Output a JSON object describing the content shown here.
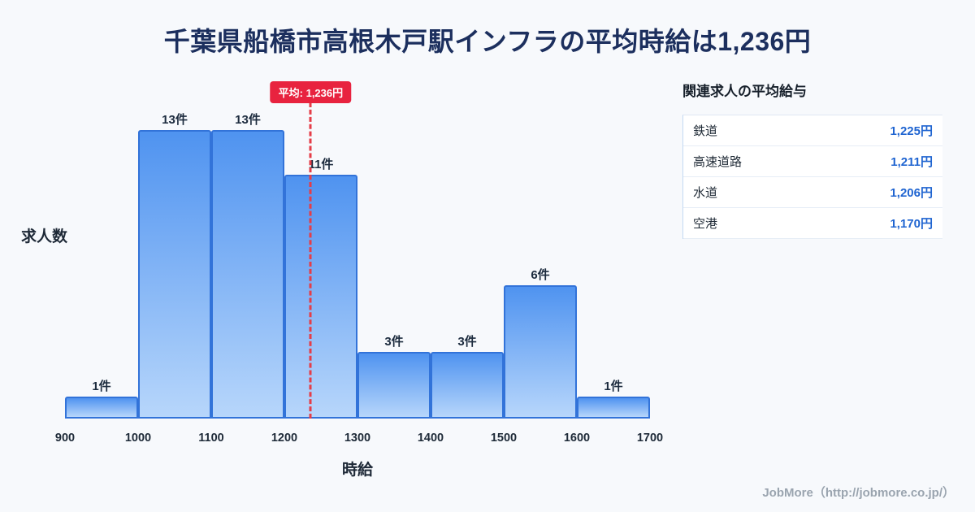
{
  "title": "千葉県船橋市高根木戸駅インフラの平均時給は1,236円",
  "chart_data": {
    "type": "bar",
    "bin_edges": [
      900,
      1000,
      1100,
      1200,
      1300,
      1400,
      1500,
      1600,
      1700
    ],
    "x_ticks": [
      "900",
      "1000",
      "1100",
      "1200",
      "1300",
      "1400",
      "1500",
      "1600",
      "1700"
    ],
    "values": [
      1,
      13,
      13,
      11,
      3,
      3,
      6,
      1
    ],
    "bar_labels": [
      "1件",
      "13件",
      "13件",
      "11件",
      "3件",
      "3件",
      "6件",
      "1件"
    ],
    "xlabel": "時給",
    "ylabel": "求人数",
    "ylim": [
      0,
      13
    ],
    "grid": "off",
    "average_line": {
      "value": 1236,
      "label": "平均: 1,236円",
      "color": "#e8233f"
    },
    "bar_color_top": "#4f93f0",
    "bar_color_bottom": "#b7d6fb",
    "bar_border_color": "#3273d9"
  },
  "panel": {
    "heading": "関連求人の平均給与",
    "rows": [
      {
        "label": "鉄道",
        "value": "1,225円"
      },
      {
        "label": "高速道路",
        "value": "1,211円"
      },
      {
        "label": "水道",
        "value": "1,206円"
      },
      {
        "label": "空港",
        "value": "1,170円"
      }
    ],
    "value_color": "#2065d1"
  },
  "footer": {
    "credit": "JobMore（http://jobmore.co.jp/）"
  }
}
